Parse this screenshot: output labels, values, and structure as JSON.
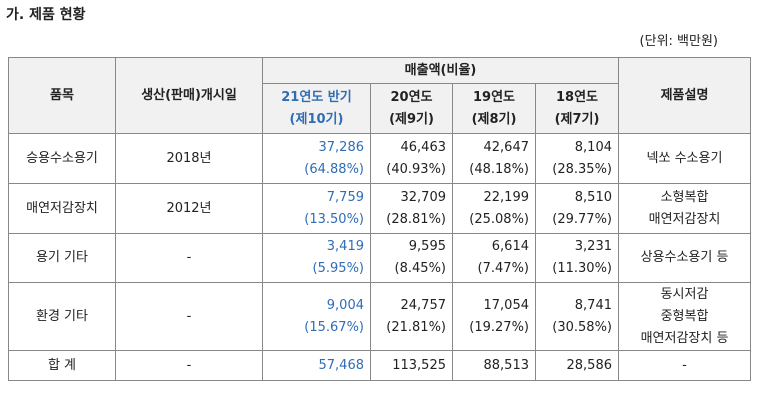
{
  "title": "가. 제품 현황",
  "unit": "(단위: 백만원)",
  "table": {
    "header": {
      "item": "품목",
      "start": "생산(판매)개시일",
      "sales": "매출액(비율)",
      "periods": [
        [
          "21연도 반기",
          "(제10기)"
        ],
        [
          "20연도",
          "(제9기)"
        ],
        [
          "19연도",
          "(제8기)"
        ],
        [
          "18연도",
          "(제7기)"
        ]
      ],
      "desc": "제품설명"
    },
    "rows": [
      {
        "item": "승용수소용기",
        "start": "2018년",
        "cells": [
          [
            "37,286",
            "(64.88%)"
          ],
          [
            "46,463",
            "(40.93%)"
          ],
          [
            "42,647",
            "(48.18%)"
          ],
          [
            "8,104",
            "(28.35%)"
          ]
        ],
        "desc": [
          "넥쏘 수소용기"
        ]
      },
      {
        "item": "매연저감장치",
        "start": "2012년",
        "cells": [
          [
            "7,759",
            "(13.50%)"
          ],
          [
            "32,709",
            "(28.81%)"
          ],
          [
            "22,199",
            "(25.08%)"
          ],
          [
            "8,510",
            "(29.77%)"
          ]
        ],
        "desc": [
          "소형복합",
          "매연저감장치"
        ]
      },
      {
        "item": "용기 기타",
        "start": "-",
        "cells": [
          [
            "3,419",
            "(5.95%)"
          ],
          [
            "9,595",
            "(8.45%)"
          ],
          [
            "6,614",
            "(7.47%)"
          ],
          [
            "3,231",
            "(11.30%)"
          ]
        ],
        "desc": [
          "상용수소용기 등"
        ]
      },
      {
        "item": "환경 기타",
        "start": "-",
        "cells": [
          [
            "9,004",
            "(15.67%)"
          ],
          [
            "24,757",
            "(21.81%)"
          ],
          [
            "17,054",
            "(19.27%)"
          ],
          [
            "8,741",
            "(30.58%)"
          ]
        ],
        "desc": [
          "동시저감",
          "중형복합",
          "매연저감장치 등"
        ]
      },
      {
        "item": "합 계",
        "start": "-",
        "cells": [
          [
            "57,468"
          ],
          [
            "113,525"
          ],
          [
            "88,513"
          ],
          [
            "28,586"
          ]
        ],
        "desc": [
          "-"
        ]
      }
    ]
  }
}
